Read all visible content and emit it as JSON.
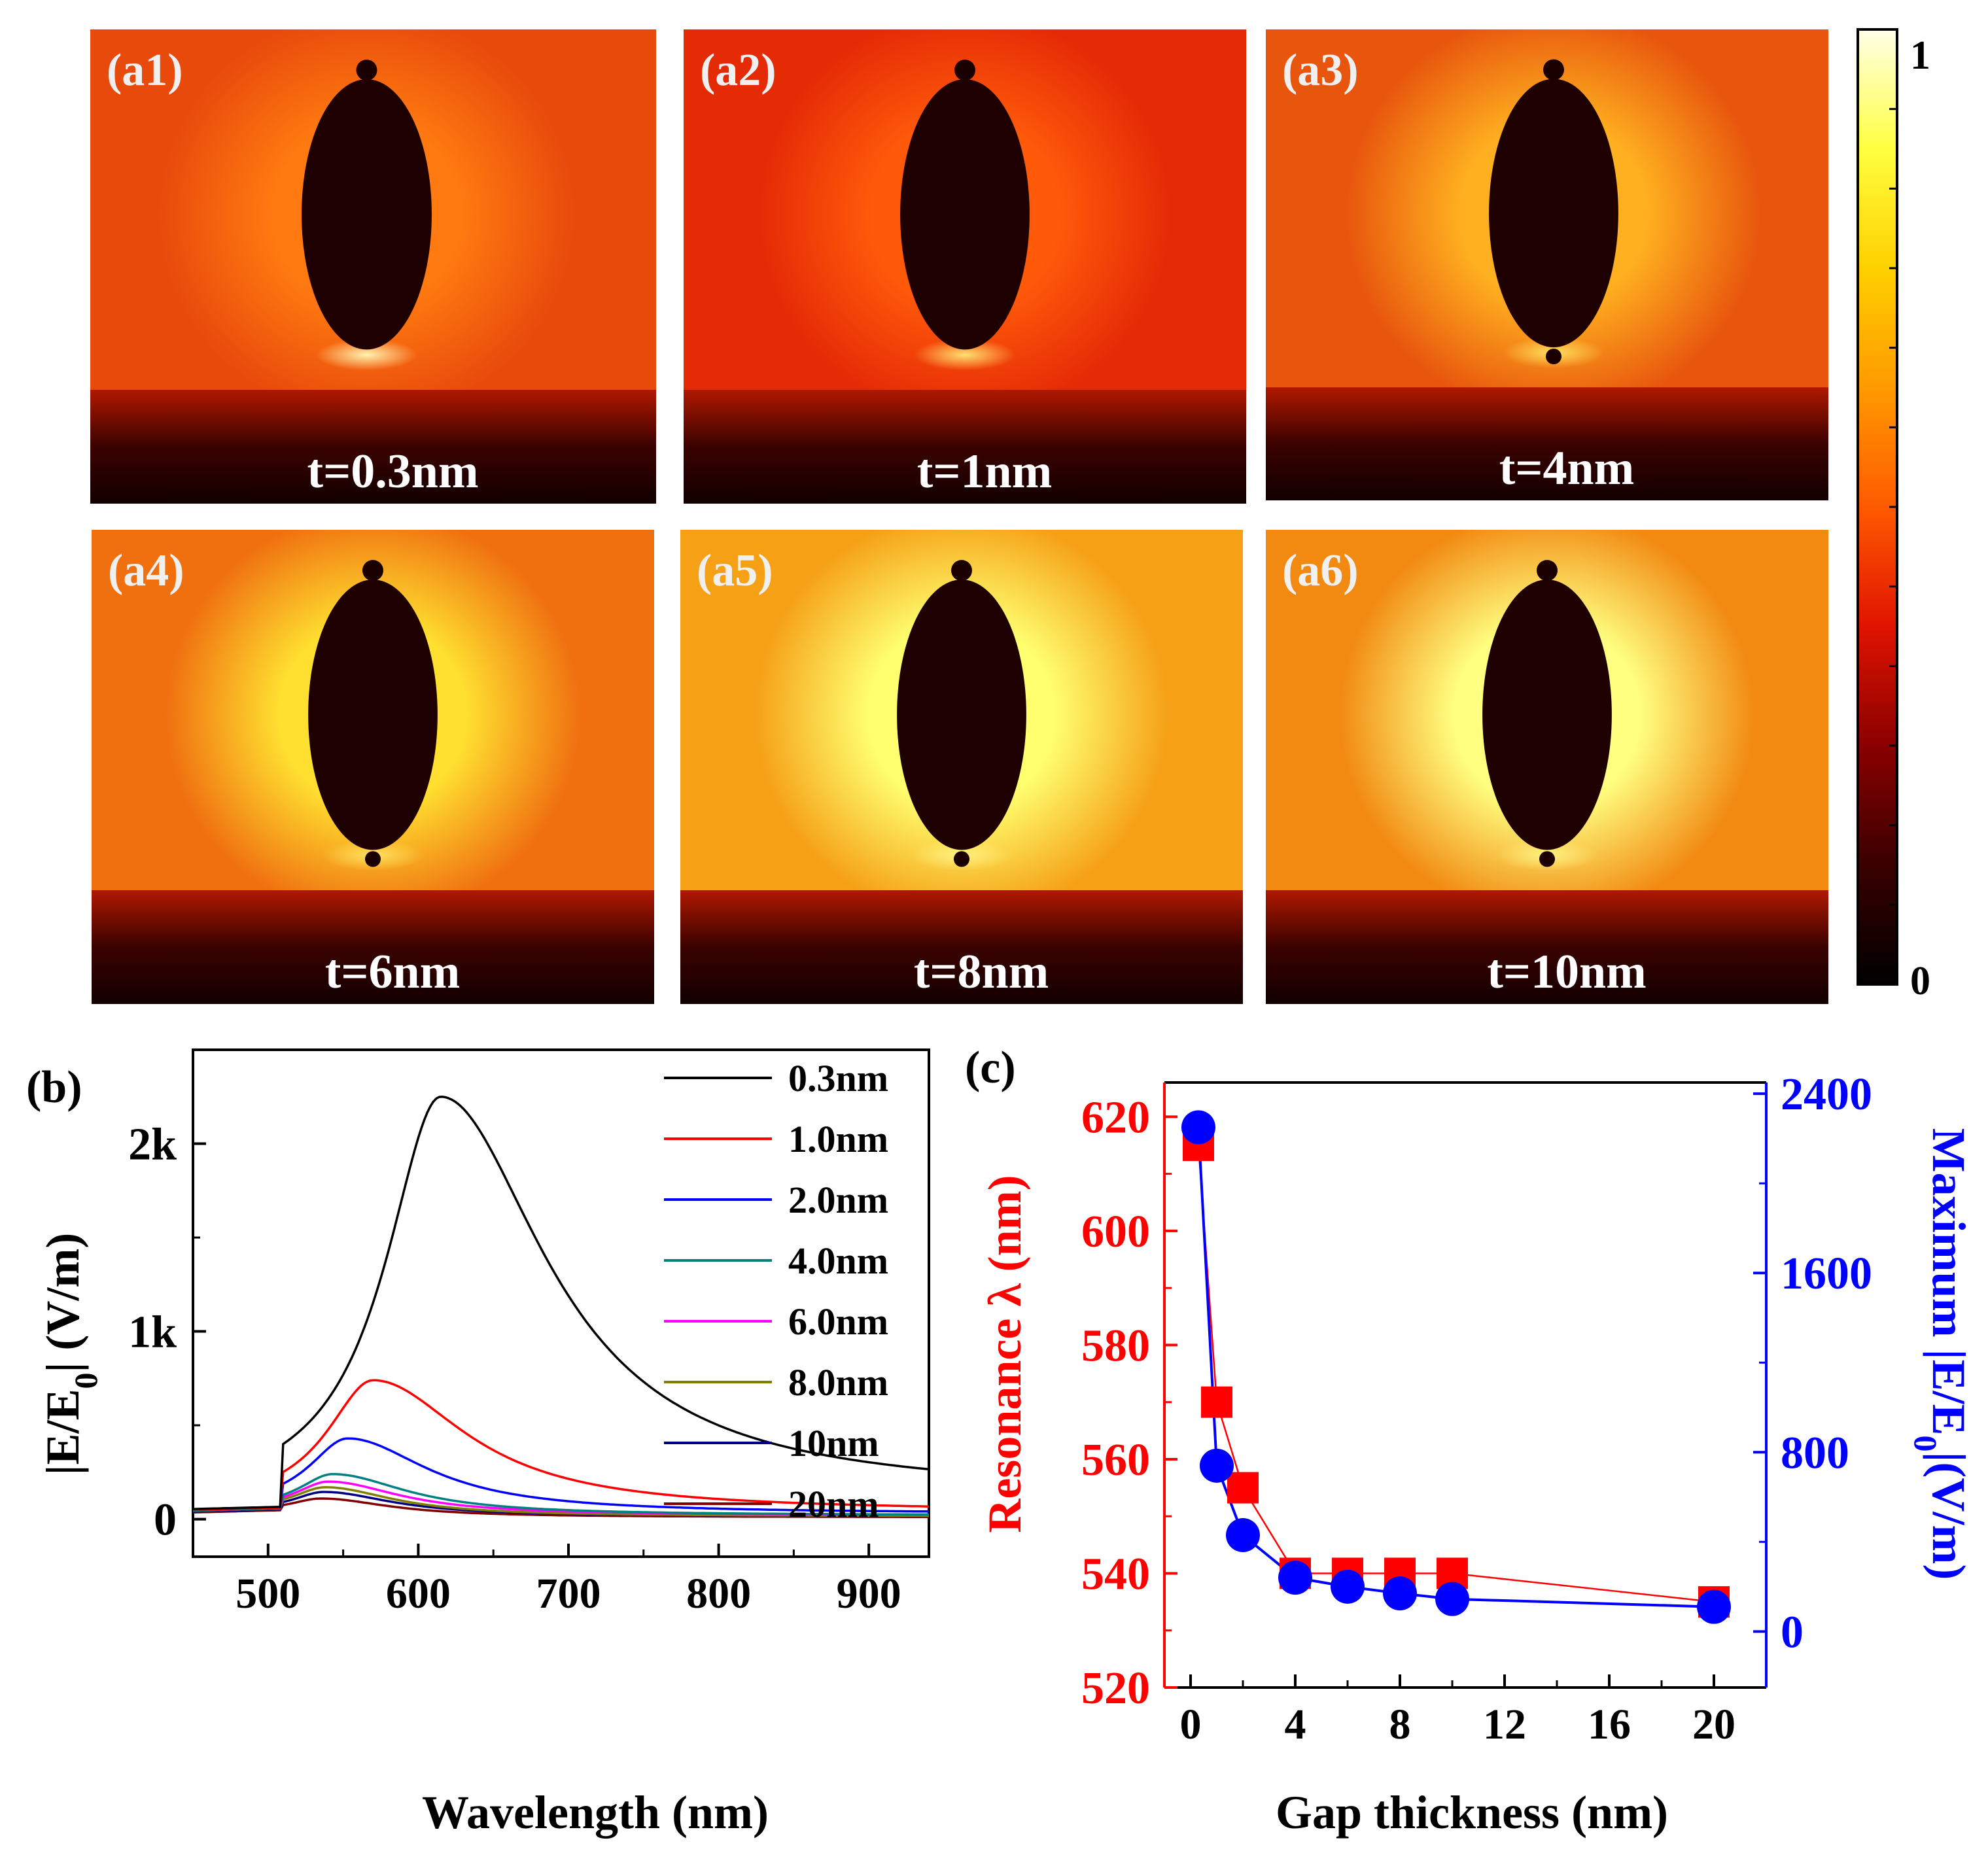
{
  "field_maps": {
    "panels": [
      {
        "label": "(a1)",
        "caption": "t=0.3nm",
        "bg": "#e84a0c",
        "glow": "#ff7a10",
        "gap_glow": "#fff2b0"
      },
      {
        "label": "(a2)",
        "caption": "t=1nm",
        "bg": "#e52a06",
        "glow": "#ff5a0a",
        "gap_glow": "#ffe070"
      },
      {
        "label": "(a3)",
        "caption": "t=4nm",
        "bg": "#e8560d",
        "glow": "#ffb020",
        "gap_glow": "#ffe060"
      },
      {
        "label": "(a4)",
        "caption": "t=6nm",
        "bg": "#f07010",
        "glow": "#ffe030",
        "gap_glow": "#ffe060"
      },
      {
        "label": "(a5)",
        "caption": "t=8nm",
        "bg": "#f6a016",
        "glow": "#ffff70",
        "gap_glow": "#fff080"
      },
      {
        "label": "(a6)",
        "caption": "t=10nm",
        "bg": "#f28a12",
        "glow": "#ffff80",
        "gap_glow": "#fff080"
      }
    ]
  },
  "colorbar": {
    "max_label": "1",
    "min_label": "0",
    "stops": [
      "#000000",
      "#3a0000",
      "#8a0000",
      "#e01400",
      "#ff5a00",
      "#ff9a00",
      "#ffd000",
      "#ffff40",
      "#ffffe8"
    ]
  },
  "chart_data": [
    {
      "type": "line",
      "panel_label": "(b)",
      "xlabel": "Wavelength (nm)",
      "ylabel": "|E/E0| (V/m)",
      "xlim": [
        450,
        940
      ],
      "ylim": [
        -200,
        2500
      ],
      "xticks": [
        500,
        600,
        700,
        800,
        900
      ],
      "yticks": [
        {
          "value": 0,
          "label": "0"
        },
        {
          "value": 1000,
          "label": "1k"
        },
        {
          "value": 2000,
          "label": "2k"
        }
      ],
      "series": [
        {
          "name": "0.3nm",
          "color": "#000000",
          "peak_x": 615,
          "peak_y": 2250,
          "w_left": 45,
          "w_right": 85,
          "base": 60,
          "tail": 130
        },
        {
          "name": "1.0nm",
          "color": "#ff0000",
          "peak_x": 570,
          "peak_y": 740,
          "w_left": 38,
          "w_right": 75,
          "base": 55,
          "tail": 40
        },
        {
          "name": "2.0nm",
          "color": "#0000ff",
          "peak_x": 553,
          "peak_y": 430,
          "w_left": 32,
          "w_right": 65,
          "base": 55,
          "tail": 30
        },
        {
          "name": "4.0nm",
          "color": "#008080",
          "peak_x": 543,
          "peak_y": 240,
          "w_left": 28,
          "w_right": 60,
          "base": 50,
          "tail": 20
        },
        {
          "name": "6.0nm",
          "color": "#ff00ff",
          "peak_x": 540,
          "peak_y": 200,
          "w_left": 27,
          "w_right": 58,
          "base": 50,
          "tail": 20
        },
        {
          "name": "8.0nm",
          "color": "#808000",
          "peak_x": 538,
          "peak_y": 170,
          "w_left": 26,
          "w_right": 55,
          "base": 50,
          "tail": 15
        },
        {
          "name": "10nm",
          "color": "#000080",
          "peak_x": 537,
          "peak_y": 145,
          "w_left": 25,
          "w_right": 55,
          "base": 45,
          "tail": 15
        },
        {
          "name": "20nm",
          "color": "#800000",
          "peak_x": 535,
          "peak_y": 110,
          "w_left": 25,
          "w_right": 55,
          "base": 40,
          "tail": 10
        }
      ],
      "legend_placement": "top-right"
    },
    {
      "type": "scatter",
      "panel_label": "(c)",
      "xlabel": "Gap thickness (nm)",
      "ylabel_left": "Resonance λ (nm)",
      "ylabel_right": "Maximum |E/E0|(V/m)",
      "xlim": [
        -1,
        22
      ],
      "xticks": [
        0,
        4,
        8,
        12,
        16,
        20
      ],
      "ylim_left": [
        520,
        626
      ],
      "yticks_left": [
        520,
        540,
        560,
        580,
        600,
        620
      ],
      "ylim_right": [
        -250,
        2450
      ],
      "yticks_right": [
        0,
        800,
        1600,
        2400
      ],
      "left_color": "#ff0000",
      "right_color": "#0000ff",
      "series": [
        {
          "name": "Resonance λ",
          "axis": "left",
          "marker": "square",
          "color": "#ff0000",
          "x": [
            0.3,
            1,
            2,
            4,
            6,
            8,
            10,
            20
          ],
          "y": [
            615,
            570,
            555,
            540,
            540,
            540,
            540,
            535
          ]
        },
        {
          "name": "Maximum |E/E0|",
          "axis": "right",
          "marker": "circle",
          "color": "#0000ff",
          "x": [
            0.3,
            1,
            2,
            4,
            6,
            8,
            10,
            20
          ],
          "y": [
            2250,
            740,
            430,
            240,
            200,
            170,
            145,
            110
          ]
        }
      ]
    }
  ]
}
